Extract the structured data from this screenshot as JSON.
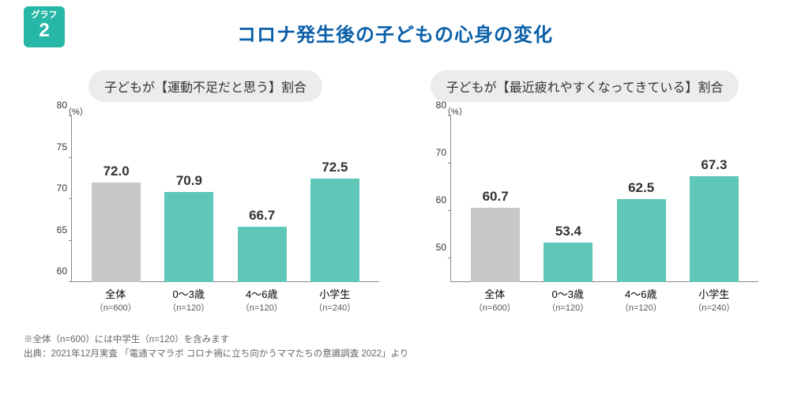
{
  "colors": {
    "accent": "#27b7a6",
    "title": "#0a5fa9",
    "subtitle_bg": "#ececec",
    "subtitle_text": "#333333",
    "bar_first": "#c7c7c7",
    "bar_rest": "#5fc7b8",
    "text": "#333333"
  },
  "badge": {
    "label": "グラフ",
    "number": "2"
  },
  "title": "コロナ発生後の子どもの心身の変化",
  "y_unit": "（%）",
  "charts": [
    {
      "subtitle": "子どもが【運動不足だと思う】割合",
      "ymin": 60,
      "ymax": 80,
      "ytick_step": 5,
      "categories": [
        {
          "label": "全体",
          "n": "（n=600）",
          "value": 72.0
        },
        {
          "label": "0～3歳",
          "n": "（n=120）",
          "value": 70.9
        },
        {
          "label": "4～6歳",
          "n": "（n=120）",
          "value": 66.7
        },
        {
          "label": "小学生",
          "n": "（n=240）",
          "value": 72.5
        }
      ]
    },
    {
      "subtitle": "子どもが【最近疲れやすくなってきている】割合",
      "ymin": 45,
      "ymax": 80,
      "ytick_step": 10,
      "ytick_start": 50,
      "categories": [
        {
          "label": "全体",
          "n": "（n=600）",
          "value": 60.7
        },
        {
          "label": "0～3歳",
          "n": "（n=120）",
          "value": 53.4
        },
        {
          "label": "4～6歳",
          "n": "（n=120）",
          "value": 62.5
        },
        {
          "label": "小学生",
          "n": "（n=240）",
          "value": 67.3
        }
      ]
    }
  ],
  "footnotes": [
    "※全体（n=600）には中学生（n=120）を含みます",
    "出典：2021年12月実査 「電通ママラボ  コロナ禍に立ち向かうママたちの意識調査  2022」より"
  ]
}
